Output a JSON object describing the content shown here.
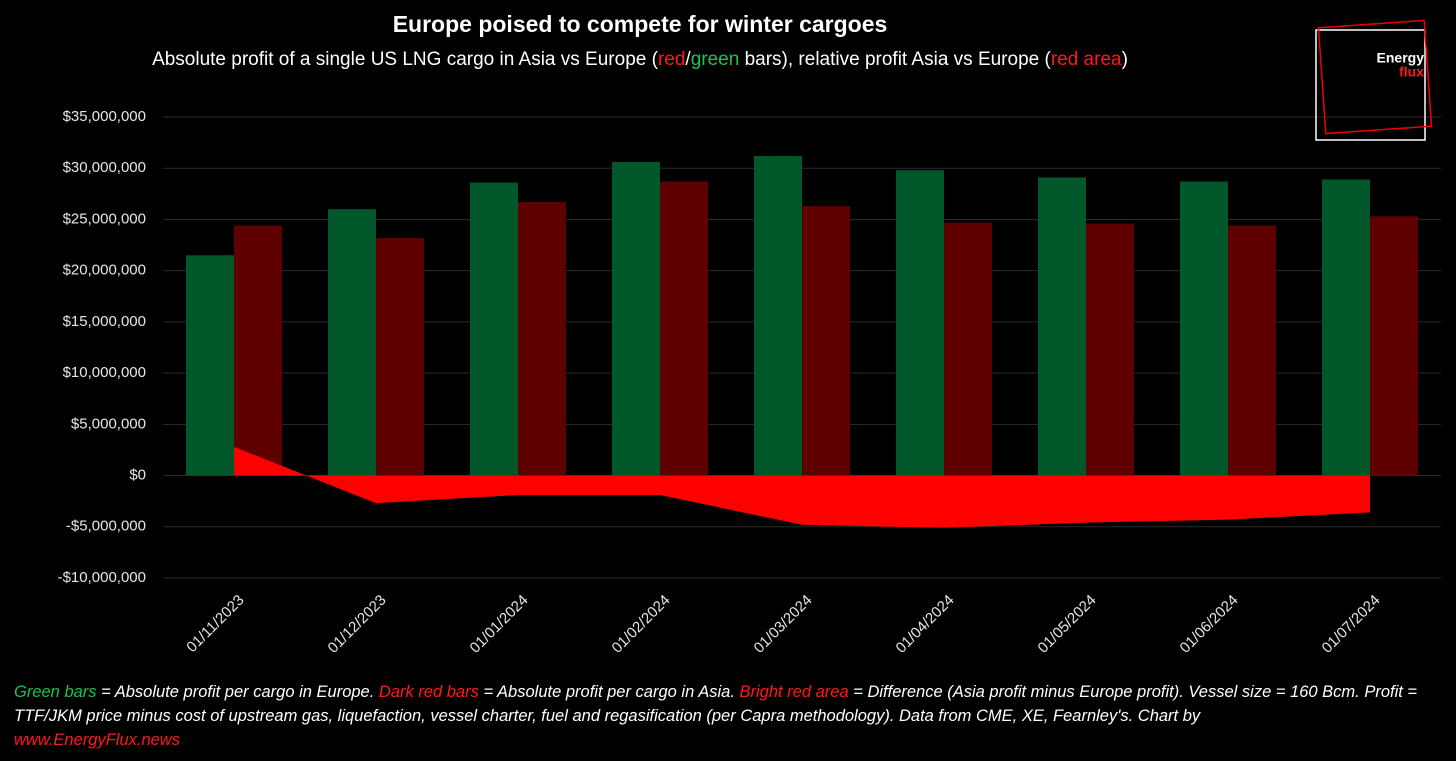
{
  "chart_data": {
    "type": "bar",
    "title": "Europe poised to compete for winter cargoes",
    "subtitle": [
      "Absolute profit of a single US LNG cargo in Asia vs Europe (",
      "red",
      "/",
      "green",
      " bars), relative profit Asia vs Europe (",
      "red area",
      ")"
    ],
    "categories": [
      "01/11/2023",
      "01/12/2023",
      "01/01/2024",
      "01/02/2024",
      "01/03/2024",
      "01/04/2024",
      "01/05/2024",
      "01/06/2024",
      "01/07/2024"
    ],
    "series": [
      {
        "type": "bar",
        "color": "#00582a",
        "values": [
          21500000,
          26000000,
          28600000,
          30600000,
          31200000,
          29800000,
          29100000,
          28700000,
          28900000
        ]
      },
      {
        "type": "bar",
        "color": "#5e0000",
        "values": [
          24400000,
          23200000,
          26700000,
          28700000,
          26300000,
          24700000,
          24600000,
          24400000,
          25300000
        ]
      },
      {
        "type": "area",
        "color": "#ff0000",
        "values": [
          2800000,
          -2700000,
          -1900000,
          -1900000,
          -4800000,
          -5100000,
          -4600000,
          -4300000,
          -3600000
        ]
      }
    ],
    "ylim": [
      -10000000,
      35000000
    ],
    "yticks": [
      {
        "value": -10000000,
        "label": "-$10,000,000"
      },
      {
        "value": -5000000,
        "label": "-$5,000,000"
      },
      {
        "value": 0,
        "label": "$0"
      },
      {
        "value": 5000000,
        "label": "$5,000,000"
      },
      {
        "value": 10000000,
        "label": "$10,000,000"
      },
      {
        "value": 15000000,
        "label": "$15,000,000"
      },
      {
        "value": 20000000,
        "label": "$20,000,000"
      },
      {
        "value": 25000000,
        "label": "$25,000,000"
      },
      {
        "value": 30000000,
        "label": "$30,000,000"
      },
      {
        "value": 35000000,
        "label": "$35,000,000"
      }
    ],
    "grid": true,
    "footnote": [
      "Green bars",
      " = Absolute profit per cargo in Europe. ",
      "Dark red bars",
      " = Absolute profit per cargo in Asia. ",
      "Bright red area",
      " = Difference (Asia profit minus Europe profit). Vessel size = 160 Bcm. Profit = TTF/JKM price minus cost of upstream gas, liquefaction, vessel charter, fuel and regasification (per Capra methodology). Data from CME, XE, Fearnley's. Chart by ",
      "www.EnergyFlux.news"
    ],
    "logo": [
      "Energy",
      "flux"
    ]
  }
}
